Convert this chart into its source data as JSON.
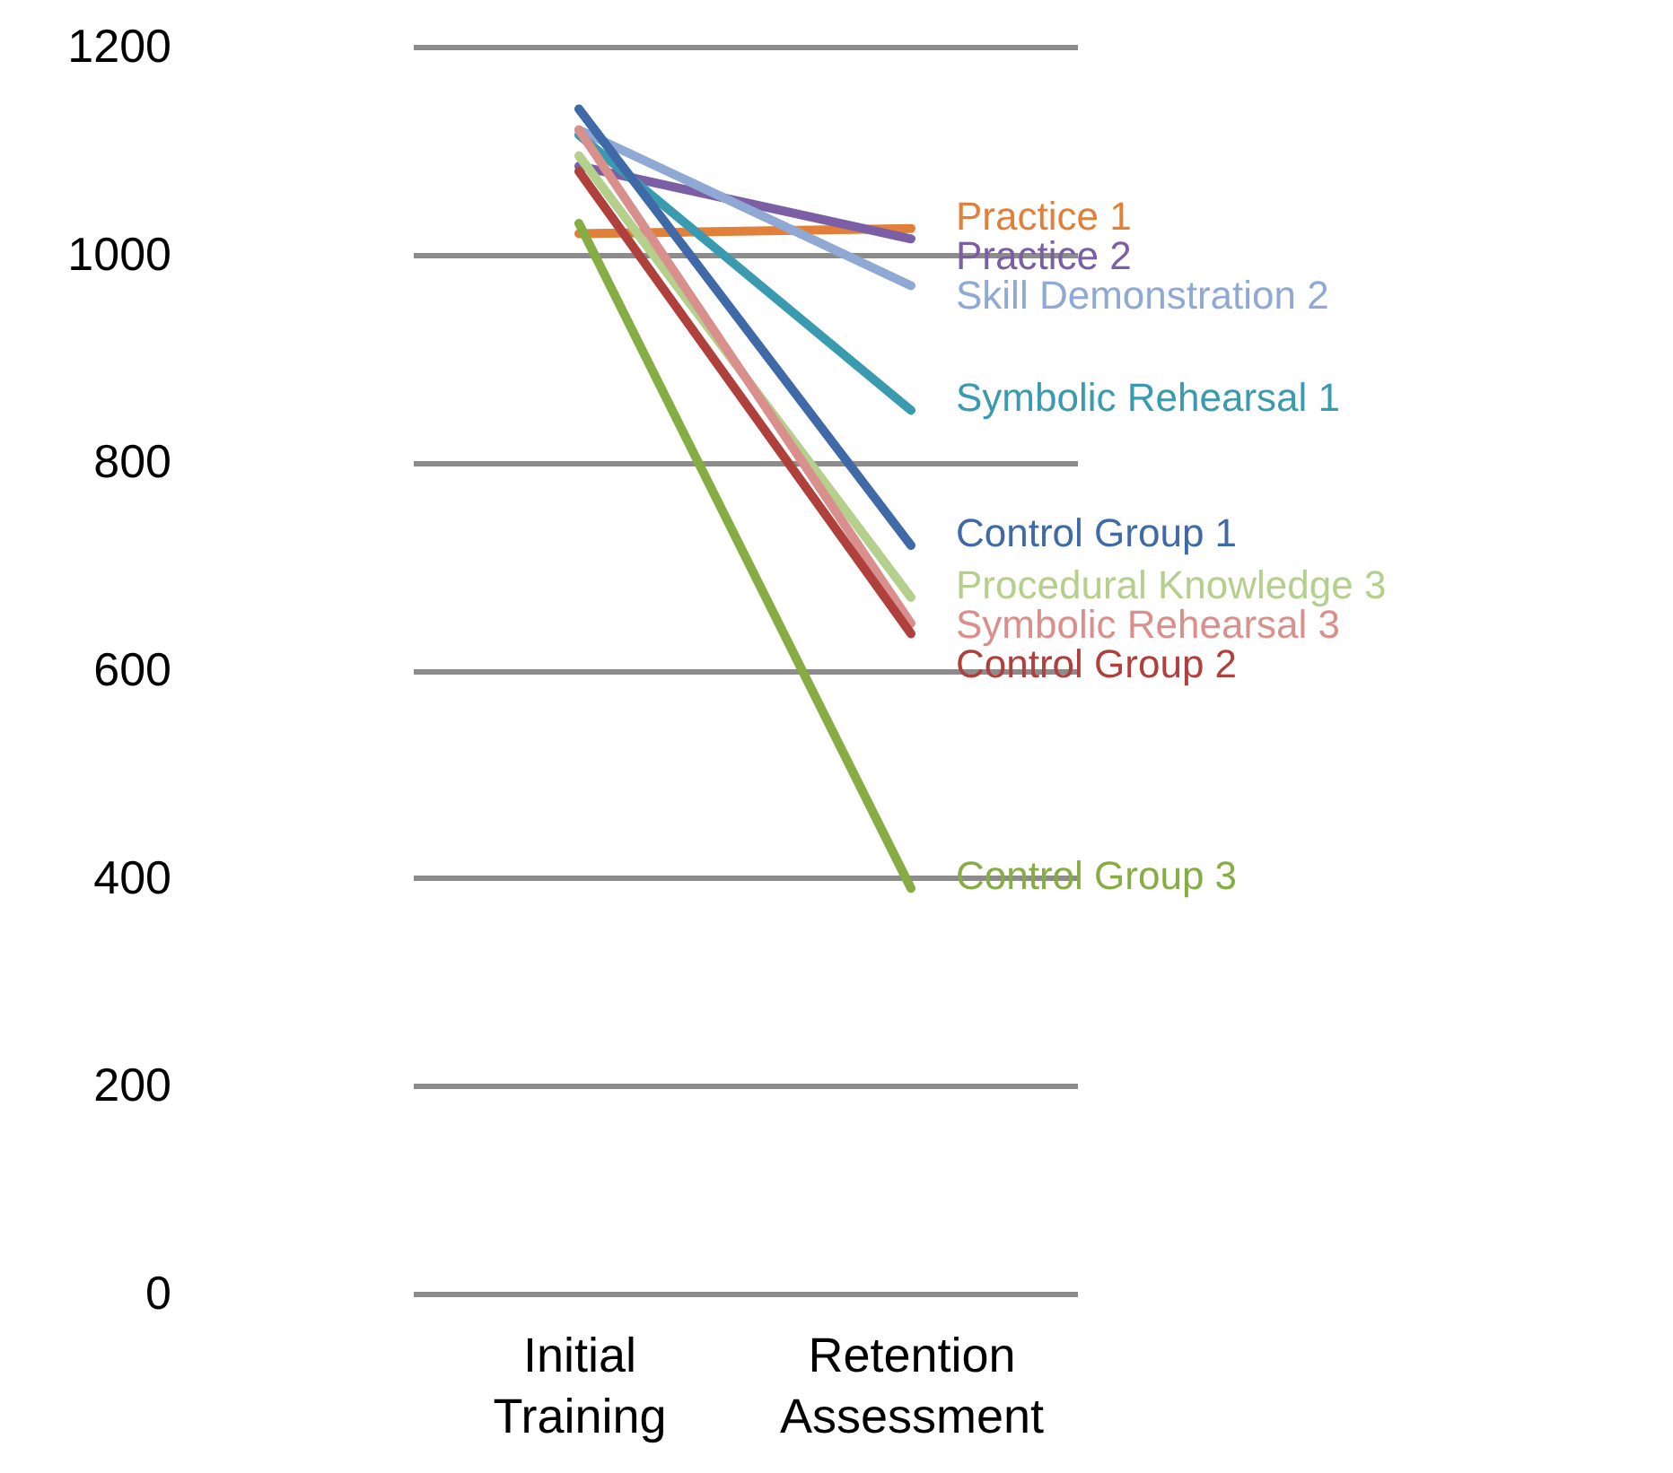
{
  "chart_data": {
    "type": "line",
    "categories": [
      "Initial Training",
      "Retention Assessment"
    ],
    "series": [
      {
        "name": "Practice 1",
        "color": "#e0803a",
        "values": [
          1020,
          1025
        ]
      },
      {
        "name": "Practice 2",
        "color": "#7b5ea4",
        "values": [
          1085,
          1015
        ]
      },
      {
        "name": "Skill Demonstration 2",
        "color": "#8fa9d4",
        "values": [
          1120,
          970
        ]
      },
      {
        "name": "Symbolic Rehearsal 1",
        "color": "#3a9ab0",
        "values": [
          1115,
          850
        ]
      },
      {
        "name": "Control Group 1",
        "color": "#3f6aa7",
        "values": [
          1140,
          720
        ]
      },
      {
        "name": "Procedural Knowledge 3",
        "color": "#b5cf8d",
        "values": [
          1095,
          670
        ]
      },
      {
        "name": "Symbolic Rehearsal 3",
        "color": "#d98f8b",
        "values": [
          1120,
          645
        ]
      },
      {
        "name": "Control Group 2",
        "color": "#b0403c",
        "values": [
          1080,
          635
        ]
      },
      {
        "name": "Control Group 3",
        "color": "#86ad44",
        "values": [
          1030,
          390
        ]
      }
    ],
    "ylim": [
      0,
      1200
    ],
    "yticks": [
      0,
      200,
      400,
      600,
      800,
      1000,
      1200
    ],
    "grid": "y",
    "legend": false,
    "marker": "none",
    "line_style": "solid"
  }
}
